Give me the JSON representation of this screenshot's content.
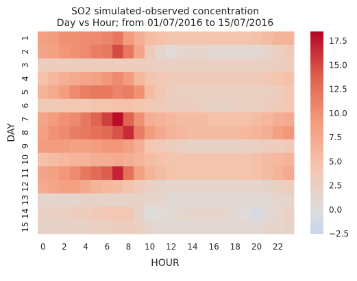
{
  "chart_data": {
    "type": "heatmap",
    "title_line1": "SO2 simulated-observed concentration",
    "title_line2": "Day vs Hour; from 01/07/2016 to 15/07/2016",
    "xlabel": "HOUR",
    "ylabel": "DAY",
    "x_categories": [
      0,
      1,
      2,
      3,
      4,
      5,
      6,
      7,
      8,
      9,
      10,
      11,
      12,
      13,
      14,
      15,
      16,
      17,
      18,
      19,
      20,
      21,
      22,
      23
    ],
    "x_tick_labels": [
      "0",
      "2",
      "4",
      "6",
      "8",
      "10",
      "12",
      "14",
      "16",
      "18",
      "20",
      "22"
    ],
    "y_categories": [
      "1",
      "2",
      "3",
      "4",
      "5",
      "6",
      "7",
      "8",
      "9",
      "10",
      "11",
      "12",
      "13",
      "14",
      "15"
    ],
    "colorbar": {
      "min": -2.5,
      "max": 18.5,
      "center": 0,
      "ticks": [
        -2.5,
        0.0,
        2.5,
        5.0,
        7.5,
        10.0,
        12.5,
        15.0,
        17.5
      ],
      "tick_labels": [
        "−2.5",
        "0.0",
        "2.5",
        "5.0",
        "7.5",
        "10.0",
        "12.5",
        "15.0",
        "17.5"
      ],
      "colormap": "coolwarm"
    },
    "values": [
      [
        8.5,
        9.0,
        10.0,
        10.0,
        10.5,
        10.5,
        11.0,
        12.0,
        9.0,
        7.0,
        5.5,
        5.0,
        4.5,
        4.5,
        4.5,
        4.5,
        4.5,
        4.5,
        4.5,
        4.5,
        5.0,
        5.5,
        6.5,
        6.5
      ],
      [
        8.0,
        8.5,
        9.5,
        10.0,
        10.5,
        11.5,
        12.0,
        15.0,
        12.0,
        8.0,
        3.5,
        1.5,
        0.5,
        1.5,
        1.5,
        1.5,
        1.0,
        1.0,
        1.0,
        1.0,
        1.0,
        1.5,
        2.5,
        3.5
      ],
      [
        3.0,
        3.0,
        3.0,
        3.0,
        3.0,
        3.0,
        3.0,
        3.0,
        3.0,
        3.0,
        3.0,
        2.5,
        2.5,
        2.5,
        2.5,
        2.5,
        2.5,
        2.5,
        2.5,
        2.5,
        2.5,
        2.5,
        3.0,
        3.0
      ],
      [
        5.0,
        6.0,
        7.0,
        7.5,
        8.0,
        8.5,
        9.5,
        10.5,
        9.0,
        6.0,
        4.5,
        4.0,
        3.5,
        3.5,
        3.5,
        3.5,
        3.5,
        3.5,
        3.5,
        3.5,
        3.5,
        4.0,
        4.5,
        5.0
      ],
      [
        6.5,
        7.5,
        9.0,
        10.5,
        11.5,
        12.0,
        12.0,
        11.0,
        11.5,
        10.0,
        5.5,
        4.0,
        3.0,
        2.5,
        2.5,
        2.5,
        2.5,
        2.5,
        2.5,
        2.5,
        2.5,
        2.5,
        3.0,
        4.0
      ],
      [
        3.5,
        3.5,
        4.0,
        4.0,
        4.0,
        4.5,
        4.5,
        5.0,
        5.0,
        4.5,
        4.0,
        3.5,
        3.0,
        3.0,
        3.0,
        2.5,
        2.0,
        2.0,
        2.5,
        2.5,
        2.5,
        3.0,
        3.5,
        4.0
      ],
      [
        8.0,
        9.0,
        10.0,
        10.5,
        12.0,
        13.5,
        15.5,
        18.0,
        13.5,
        10.0,
        7.0,
        6.5,
        6.0,
        5.5,
        5.5,
        5.5,
        5.0,
        5.0,
        5.0,
        5.0,
        5.5,
        6.0,
        7.0,
        7.5
      ],
      [
        8.5,
        10.0,
        10.5,
        11.5,
        12.0,
        12.5,
        13.0,
        14.5,
        16.5,
        11.5,
        9.0,
        7.5,
        6.5,
        6.0,
        5.5,
        5.5,
        5.5,
        5.5,
        5.5,
        6.0,
        6.5,
        7.0,
        8.5,
        9.5
      ],
      [
        9.0,
        9.0,
        9.0,
        8.5,
        8.5,
        9.0,
        9.5,
        9.5,
        8.5,
        7.0,
        4.0,
        3.5,
        3.0,
        2.5,
        2.0,
        2.0,
        2.0,
        2.0,
        2.0,
        2.5,
        2.5,
        3.0,
        3.0,
        3.5
      ],
      [
        5.0,
        5.5,
        6.0,
        6.5,
        6.5,
        7.0,
        7.0,
        7.5,
        7.0,
        6.5,
        5.5,
        5.0,
        4.5,
        4.5,
        4.5,
        4.5,
        4.5,
        4.5,
        4.5,
        4.5,
        5.0,
        5.5,
        6.0,
        6.5
      ],
      [
        8.0,
        8.5,
        9.5,
        10.5,
        12.0,
        13.0,
        14.0,
        17.0,
        12.5,
        8.5,
        6.5,
        5.5,
        5.0,
        4.5,
        4.5,
        4.5,
        4.5,
        4.5,
        4.5,
        4.5,
        5.0,
        5.5,
        6.5,
        7.5
      ],
      [
        7.5,
        8.0,
        8.5,
        8.5,
        7.5,
        6.5,
        6.0,
        5.5,
        4.5,
        3.5,
        2.5,
        2.0,
        1.5,
        1.5,
        1.5,
        1.5,
        1.5,
        1.5,
        1.5,
        1.5,
        1.5,
        2.0,
        2.5,
        3.0
      ],
      [
        1.5,
        1.5,
        1.5,
        1.5,
        2.0,
        2.0,
        2.0,
        2.0,
        2.0,
        2.0,
        1.5,
        1.5,
        1.0,
        1.0,
        1.0,
        1.0,
        1.0,
        1.0,
        1.0,
        1.0,
        1.0,
        1.0,
        1.5,
        1.5
      ],
      [
        2.5,
        2.5,
        2.5,
        3.0,
        3.0,
        3.5,
        4.0,
        4.0,
        4.0,
        2.0,
        0.0,
        0.5,
        1.0,
        1.5,
        1.5,
        1.5,
        1.5,
        1.5,
        1.0,
        0.5,
        -1.0,
        1.0,
        1.5,
        2.5
      ],
      [
        2.0,
        2.0,
        2.0,
        2.0,
        2.0,
        2.5,
        2.5,
        3.0,
        3.0,
        2.5,
        1.5,
        1.0,
        1.0,
        1.0,
        1.0,
        1.0,
        1.0,
        1.0,
        1.0,
        1.0,
        1.0,
        1.5,
        1.5,
        2.0
      ]
    ]
  }
}
